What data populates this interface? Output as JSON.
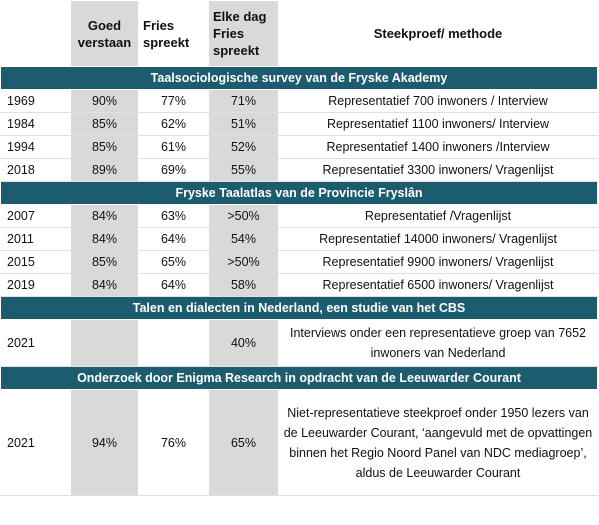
{
  "header": {
    "year": "",
    "goed_verstaan": "Goed verstaan",
    "fries_spreekt": "Fries spreekt",
    "elke_dag": "Elke dag Fries spreekt",
    "steekproef": "Steekproef/ methode"
  },
  "sections": [
    {
      "title": "Taalsociologische survey van de Fryske Akademy",
      "rows": [
        {
          "year": "1969",
          "goed": "90%",
          "fries": "77%",
          "elke": "71%",
          "method": "Representatief 700 inwoners / Interview"
        },
        {
          "year": "1984",
          "goed": "85%",
          "fries": "62%",
          "elke": "51%",
          "method": "Representatief 1100 inwoners/ Interview"
        },
        {
          "year": "1994",
          "goed": "85%",
          "fries": "61%",
          "elke": "52%",
          "method": "Representatief 1400 inwoners /Interview"
        },
        {
          "year": "2018",
          "goed": "89%",
          "fries": "69%",
          "elke": "55%",
          "method": "Representatief 3300 inwoners/ Vragenlijst"
        }
      ]
    },
    {
      "title": "Fryske Taalatlas van de Provincie Fryslân",
      "rows": [
        {
          "year": "2007",
          "goed": "84%",
          "fries": "63%",
          "elke": ">50%",
          "method": "Representatief  /Vragenlijst"
        },
        {
          "year": "2011",
          "goed": "84%",
          "fries": "64%",
          "elke": "54%",
          "method": "Representatief 14000 inwoners/ Vragenlijst"
        },
        {
          "year": "2015",
          "goed": "85%",
          "fries": "65%",
          "elke": ">50%",
          "method": "Representatief 9900 inwoners/ Vragenlijst"
        },
        {
          "year": "2019",
          "goed": "84%",
          "fries": "64%",
          "elke": "58%",
          "method": "Representatief 6500 inwoners/ Vragenlijst"
        }
      ]
    },
    {
      "title": "Talen en dialecten in Nederland, een studie van het CBS",
      "rows": [
        {
          "year": "2021",
          "goed": "",
          "fries": "",
          "elke": "40%",
          "method": "Interviews onder een representatieve groep van 7652 inwoners van Nederland"
        }
      ]
    },
    {
      "title": "Onderzoek door Enigma Research in opdracht van de Leeuwarder Courant",
      "rows": [
        {
          "year": "2021",
          "goed": "94%",
          "fries": "76%",
          "elke": "65%",
          "method": "Niet-representatieve steekproef onder 1950 lezers van de Leeuwarder Courant, ‘aangevuld met de opvattingen binnen het Regio Noord Panel van NDC mediagroep’, aldus de Leeuwarder Courant"
        }
      ]
    }
  ]
}
